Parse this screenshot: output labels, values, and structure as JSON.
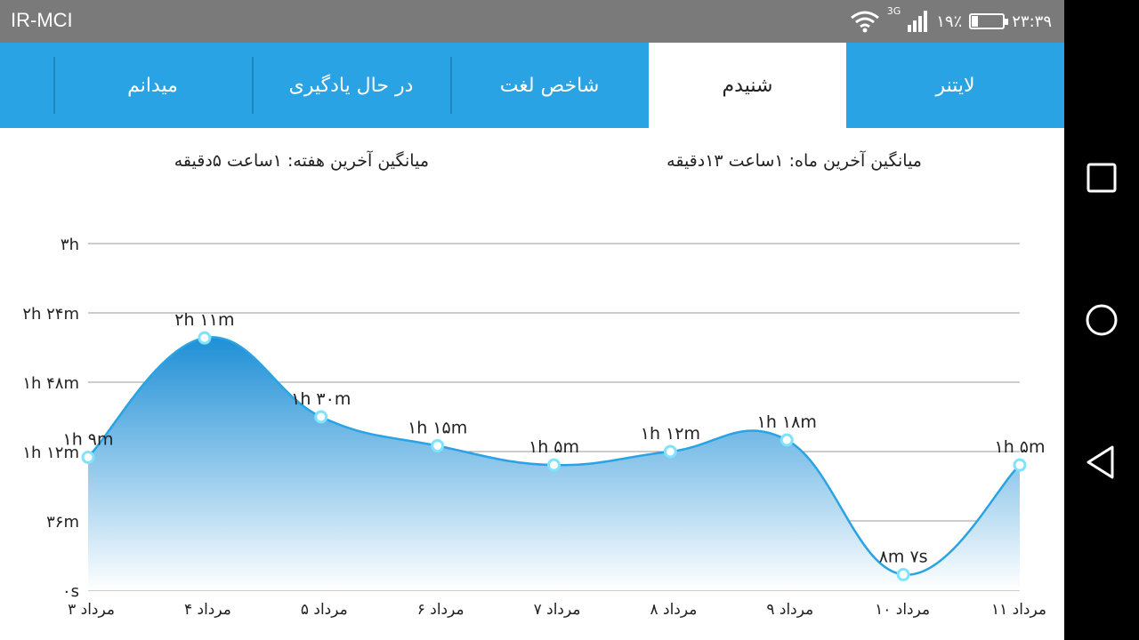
{
  "status_bar": {
    "carrier": "IR-MCI",
    "network_type": "3G",
    "battery_percent": "۱۹٪",
    "battery_level": 0.19,
    "time": "۲۳:۳۹"
  },
  "tabs": [
    {
      "label": "لایتنر",
      "active": false
    },
    {
      "label": "شنیدم",
      "active": true
    },
    {
      "label": "شاخص لغت",
      "active": false
    },
    {
      "label": "در حال یادگیری",
      "active": false
    },
    {
      "label": "میدانم",
      "active": false
    }
  ],
  "stats": {
    "month_average": "میانگین آخرین ماه: ۱ساعت  ۱۳دقیقه",
    "week_average": "میانگین آخرین هفته: ۱ساعت  ۵دقیقه"
  },
  "chart_data": {
    "type": "area",
    "categories": [
      "۳ مرداد",
      "۴ مرداد",
      "۵ مرداد",
      "۶ مرداد",
      "۷ مرداد",
      "۸ مرداد",
      "۹ مرداد",
      "۱۰ مرداد",
      "۱۱ مرداد"
    ],
    "values_minutes": [
      69,
      131,
      90,
      75,
      65,
      72,
      78,
      8.12,
      65
    ],
    "data_labels": [
      "۱h ۹m",
      "۲h ۱۱m",
      "۱h ۳۰m",
      "۱h ۱۵m",
      "۱h ۵m",
      "۱h ۱۲m",
      "۱h ۱۸m",
      "۸m ۷s",
      "۱h ۵m"
    ],
    "y_ticks": [
      {
        "value": 0,
        "label": "۰s"
      },
      {
        "value": 36,
        "label": "۳۶m"
      },
      {
        "value": 72,
        "label": "۱h ۱۲m"
      },
      {
        "value": 108,
        "label": "۱h ۴۸m"
      },
      {
        "value": 144,
        "label": "۲h ۲۴m"
      },
      {
        "value": 180,
        "label": "۳h"
      }
    ],
    "ylim": [
      0,
      180
    ],
    "grid": true,
    "colors": {
      "line": "#29a3e3",
      "fill_top": "#1e8fd6",
      "fill_bottom": "#ffffff",
      "point": "#7fe3ff",
      "grid": "#9a9a9a"
    }
  },
  "nav": {
    "recent_icon": "square-icon",
    "home_icon": "circle-icon",
    "back_icon": "triangle-back-icon"
  }
}
